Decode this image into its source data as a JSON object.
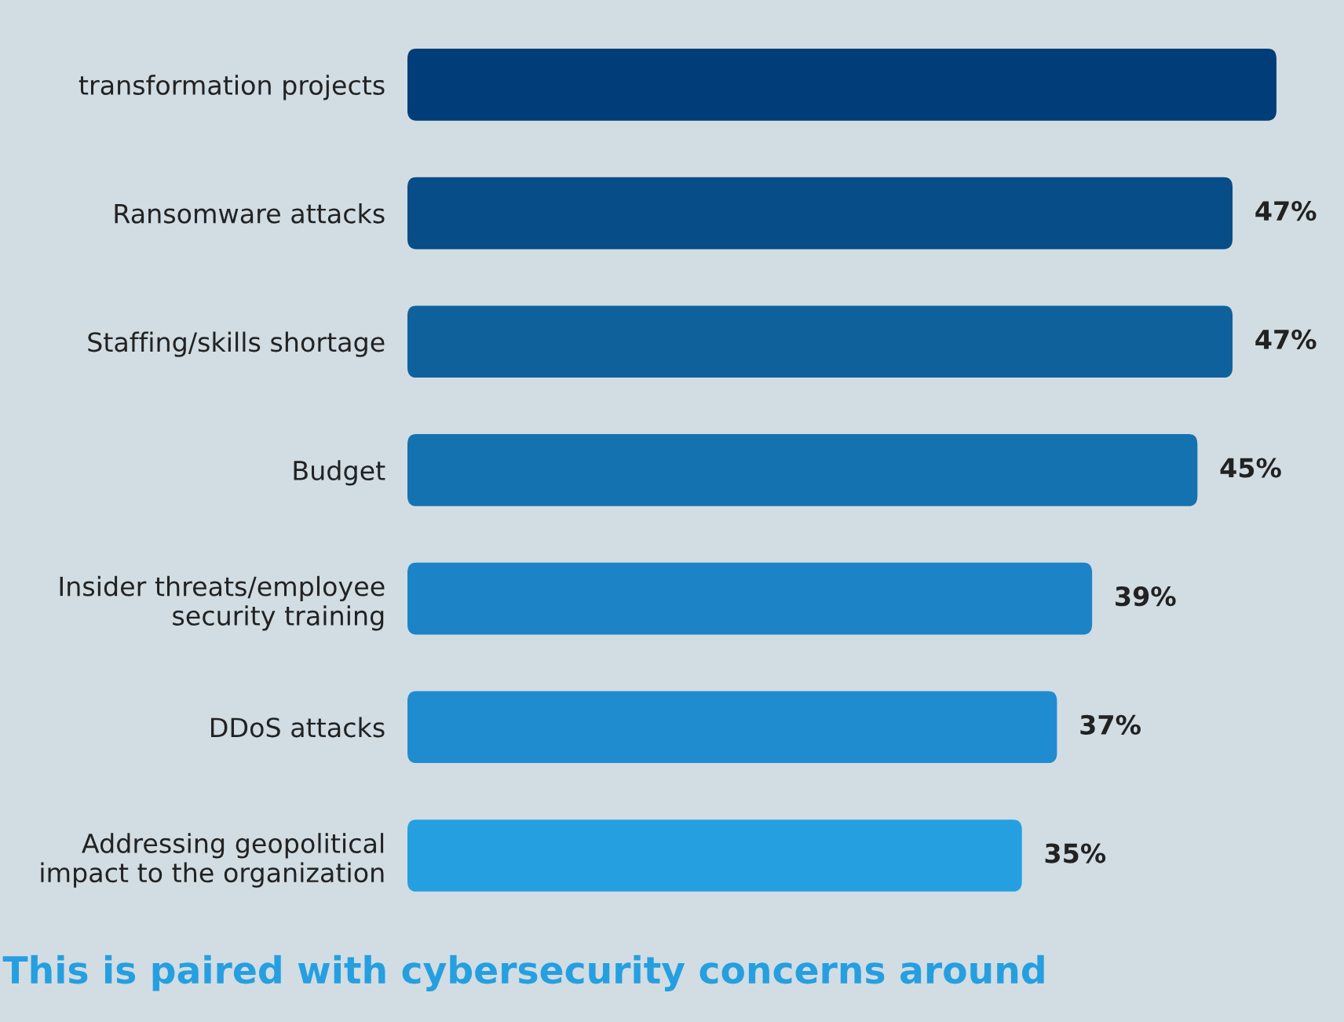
{
  "chart_data": {
    "type": "bar",
    "orientation": "horizontal",
    "categories": [
      "transformation projects",
      "Ransomware attacks",
      "Staffing/skills shortage",
      "Budget",
      "Insider threats/employee\nsecurity training",
      "DDoS attacks",
      "Addressing geopolitical\nimpact to the organization"
    ],
    "values": [
      49.5,
      47,
      47,
      45,
      39,
      37,
      35
    ],
    "value_labels": [
      null,
      "47%",
      "47%",
      "45%",
      "39%",
      "37%",
      "35%"
    ],
    "colors": [
      "#013d78",
      "#074d87",
      "#0f619b",
      "#1572b0",
      "#1c83c6",
      "#208cd0",
      "#259fe0"
    ],
    "tick_labels": "y",
    "grid": false,
    "legend": false,
    "annotations": [
      "This is paired with cybersecurity concerns around"
    ]
  }
}
